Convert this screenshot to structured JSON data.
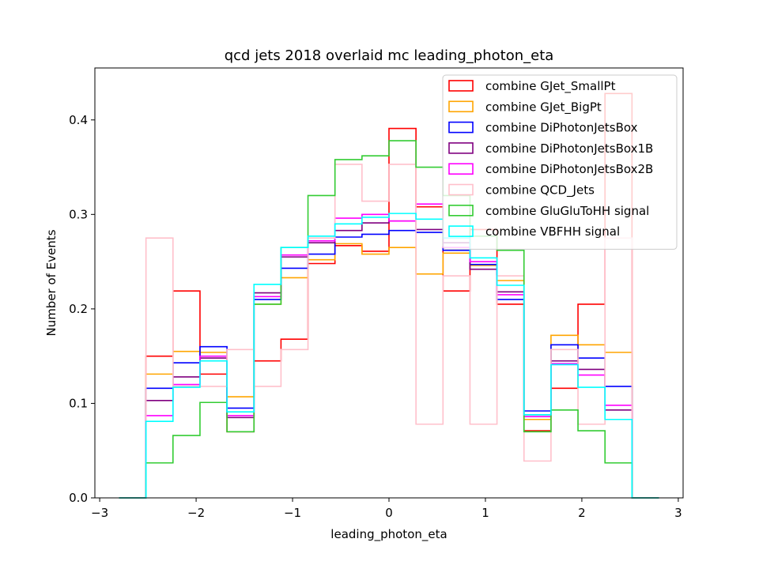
{
  "chart_data": {
    "type": "step-histogram",
    "title": "qcd jets 2018 overlaid mc leading_photon_eta",
    "xlabel": "leading_photon_eta",
    "ylabel": "Number of Events",
    "xlim": [
      -3.05,
      3.05
    ],
    "ylim": [
      0,
      0.455
    ],
    "xticks": [
      -3,
      -2,
      -1,
      0,
      1,
      2,
      3
    ],
    "xtick_labels": [
      "−3",
      "−2",
      "−1",
      "0",
      "1",
      "2",
      "3"
    ],
    "yticks": [
      0.0,
      0.1,
      0.2,
      0.3,
      0.4
    ],
    "ytick_labels": [
      "0.0",
      "0.1",
      "0.2",
      "0.3",
      "0.4"
    ],
    "grid": false,
    "legend_position": "top-right",
    "bin_edges": [
      -2.8,
      -2.52,
      -2.24,
      -1.96,
      -1.68,
      -1.4,
      -1.12,
      -0.84,
      -0.56,
      -0.28,
      0.0,
      0.28,
      0.56,
      0.84,
      1.12,
      1.4,
      1.68,
      1.96,
      2.24,
      2.52,
      2.8
    ],
    "series": [
      {
        "name": "combine GJet_SmallPt",
        "color": "#ff0000",
        "values": [
          0,
          0.15,
          0.219,
          0.131,
          0.07,
          0.145,
          0.168,
          0.248,
          0.267,
          0.261,
          0.391,
          0.308,
          0.219,
          0.284,
          0.205,
          0.071,
          0.116,
          0.205,
          0.428,
          0
        ]
      },
      {
        "name": "combine GJet_BigPt",
        "color": "#ffa500",
        "values": [
          0,
          0.131,
          0.155,
          0.154,
          0.107,
          0.205,
          0.233,
          0.252,
          0.269,
          0.258,
          0.265,
          0.237,
          0.259,
          0.246,
          0.23,
          0.083,
          0.172,
          0.162,
          0.154,
          0
        ]
      },
      {
        "name": "combine DiPhotonJetsBox",
        "color": "#0000ff",
        "values": [
          0,
          0.116,
          0.143,
          0.16,
          0.095,
          0.21,
          0.243,
          0.258,
          0.276,
          0.279,
          0.283,
          0.281,
          0.262,
          0.247,
          0.21,
          0.092,
          0.162,
          0.148,
          0.118,
          0
        ]
      },
      {
        "name": "combine DiPhotonJetsBox1B",
        "color": "#800080",
        "values": [
          0,
          0.103,
          0.128,
          0.148,
          0.085,
          0.217,
          0.255,
          0.27,
          0.283,
          0.291,
          0.293,
          0.284,
          0.27,
          0.242,
          0.218,
          0.088,
          0.145,
          0.136,
          0.093,
          0
        ]
      },
      {
        "name": "combine DiPhotonJetsBox2B",
        "color": "#ff00ff",
        "values": [
          0,
          0.087,
          0.12,
          0.15,
          0.087,
          0.213,
          0.257,
          0.272,
          0.296,
          0.3,
          0.293,
          0.311,
          0.265,
          0.25,
          0.215,
          0.086,
          0.142,
          0.13,
          0.098,
          0
        ]
      },
      {
        "name": "combine QCD_Jets",
        "color": "#ffc0cb",
        "values": [
          0,
          0.275,
          0.118,
          0.118,
          0.157,
          0.118,
          0.157,
          0.275,
          0.353,
          0.314,
          0.353,
          0.078,
          0.235,
          0.078,
          0.235,
          0.039,
          0.157,
          0.078,
          0.275,
          0
        ]
      },
      {
        "name": "combine GluGluToHH signal",
        "color": "#33cc33",
        "values": [
          0,
          0.037,
          0.066,
          0.101,
          0.07,
          0.205,
          0.265,
          0.32,
          0.358,
          0.362,
          0.378,
          0.35,
          0.32,
          0.277,
          0.262,
          0.07,
          0.093,
          0.071,
          0.037,
          0
        ]
      },
      {
        "name": "combine VBFHH signal",
        "color": "#00ffff",
        "values": [
          0,
          0.081,
          0.117,
          0.145,
          0.091,
          0.226,
          0.265,
          0.277,
          0.29,
          0.297,
          0.301,
          0.295,
          0.275,
          0.254,
          0.225,
          0.088,
          0.141,
          0.117,
          0.083,
          0
        ]
      }
    ]
  }
}
